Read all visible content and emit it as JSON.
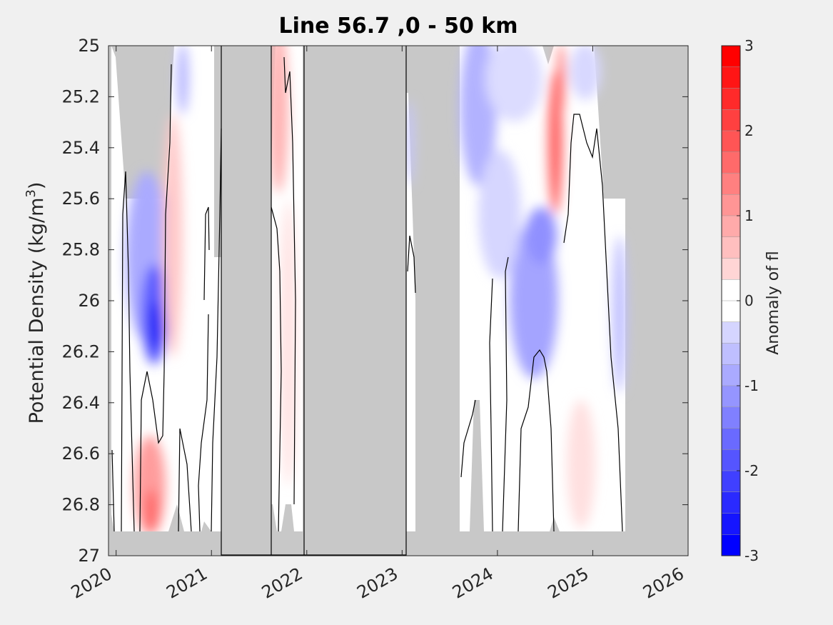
{
  "chart_data": {
    "type": "heatmap",
    "title": "Line 56.7 ,0 - 50 km",
    "xlabel": "",
    "ylabel_main": "Potential Density (kg/m",
    "ylabel_sup": "3",
    "ylabel_close": ")",
    "xlim": [
      2019.92,
      2026.0
    ],
    "ylim": [
      25.0,
      27.0
    ],
    "y_inverted": true,
    "x_ticks": [
      2020,
      2021,
      2022,
      2023,
      2024,
      2025,
      2026
    ],
    "x_tick_labels": [
      "2020",
      "2021",
      "2022",
      "2023",
      "2024",
      "2025",
      "2026"
    ],
    "y_ticks": [
      25,
      25.2,
      25.4,
      25.6,
      25.8,
      26,
      26.2,
      26.4,
      26.6,
      26.8,
      27
    ],
    "y_tick_labels": [
      "25",
      "25.2",
      "25.4",
      "25.6",
      "25.8",
      "26",
      "26.2",
      "26.4",
      "26.6",
      "26.8",
      "27"
    ],
    "colorbar": {
      "label": "Anomaly of fl",
      "range": [
        -3,
        3
      ],
      "levels": 24,
      "ticks": [
        3,
        2,
        1,
        0,
        -1,
        -2,
        -3
      ],
      "tick_labels": [
        "3",
        "2",
        "1",
        "0",
        "-1",
        "-2",
        "-3"
      ],
      "colormap": "blue-white-red"
    },
    "no_data_color": "#c8c8c8",
    "no_data_intervals_years": [
      [
        2021.1,
        2021.62
      ],
      [
        2021.97,
        2023.05
      ]
    ],
    "anomaly_features": [
      {
        "x": 2020.4,
        "y": 26.1,
        "value": -2.2
      },
      {
        "x": 2020.42,
        "y": 25.85,
        "value": -1.2
      },
      {
        "x": 2020.38,
        "y": 26.82,
        "value": 1.2
      },
      {
        "x": 2020.6,
        "y": 25.8,
        "value": 0.8
      },
      {
        "x": 2021.75,
        "y": 25.3,
        "value": 0.8
      },
      {
        "x": 2023.75,
        "y": 25.3,
        "value": -0.8
      },
      {
        "x": 2024.1,
        "y": 26.1,
        "value": -0.9
      },
      {
        "x": 2024.45,
        "y": 25.8,
        "value": -1.0
      },
      {
        "x": 2024.6,
        "y": 25.4,
        "value": 1.8
      },
      {
        "x": 2025.3,
        "y": 26.2,
        "value": -0.5
      },
      {
        "x": 2024.98,
        "y": 26.7,
        "value": 0.3
      }
    ]
  }
}
